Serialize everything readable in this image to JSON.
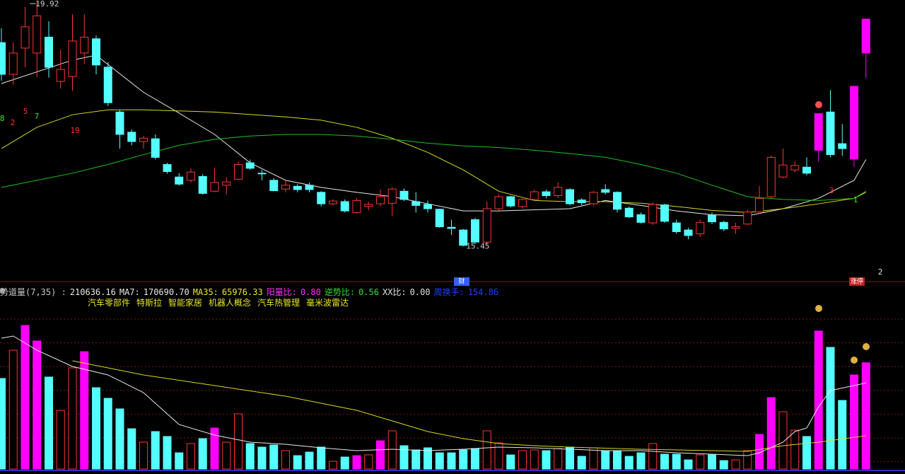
{
  "chart_data": [
    {
      "type": "candlestick",
      "ylim": [
        14.91,
        19.96
      ],
      "colors": {
        "up": "#ff3232",
        "down": "#54ffff",
        "highlight": "#ff00ff"
      },
      "highlight": [
        69,
        72,
        73
      ],
      "candles": [
        [
          19.18,
          19.44,
          18.48,
          18.6
        ],
        [
          18.6,
          19.18,
          18.41,
          18.99
        ],
        [
          19.08,
          19.83,
          18.73,
          19.47
        ],
        [
          18.99,
          19.92,
          18.54,
          19.67
        ],
        [
          19.28,
          19.57,
          18.54,
          18.73
        ],
        [
          18.47,
          19.05,
          18.34,
          18.69
        ],
        [
          18.56,
          19.7,
          18.3,
          19.21
        ],
        [
          18.99,
          19.7,
          18.79,
          19.28
        ],
        [
          19.25,
          19.31,
          18.6,
          18.77
        ],
        [
          18.73,
          18.82,
          18.02,
          18.08
        ],
        [
          17.91,
          17.95,
          17.24,
          17.5
        ],
        [
          17.54,
          17.59,
          17.3,
          17.37
        ],
        [
          17.37,
          17.47,
          17.24,
          17.43
        ],
        [
          17.42,
          17.5,
          17.04,
          17.08
        ],
        [
          16.95,
          16.98,
          16.78,
          16.82
        ],
        [
          16.72,
          16.79,
          16.56,
          16.59
        ],
        [
          16.66,
          16.88,
          16.62,
          16.81
        ],
        [
          16.73,
          16.77,
          16.4,
          16.42
        ],
        [
          16.46,
          16.89,
          16.44,
          16.62
        ],
        [
          16.57,
          16.72,
          16.4,
          16.63
        ],
        [
          16.68,
          17.0,
          16.66,
          16.95
        ],
        [
          16.98,
          17.04,
          16.85,
          16.88
        ],
        [
          16.79,
          16.85,
          16.66,
          16.78
        ],
        [
          16.66,
          16.7,
          16.46,
          16.47
        ],
        [
          16.5,
          16.66,
          16.44,
          16.57
        ],
        [
          16.55,
          16.59,
          16.44,
          16.49
        ],
        [
          16.57,
          16.62,
          16.44,
          16.49
        ],
        [
          16.44,
          16.46,
          16.18,
          16.23
        ],
        [
          16.23,
          16.31,
          16.2,
          16.28
        ],
        [
          16.27,
          16.31,
          16.07,
          16.1
        ],
        [
          16.07,
          16.33,
          16.05,
          16.29
        ],
        [
          16.18,
          16.27,
          16.11,
          16.22
        ],
        [
          16.23,
          16.49,
          16.18,
          16.36
        ],
        [
          16.24,
          16.53,
          16.01,
          16.5
        ],
        [
          16.46,
          16.51,
          16.28,
          16.31
        ],
        [
          16.27,
          16.44,
          16.07,
          16.2
        ],
        [
          16.22,
          16.29,
          16.07,
          16.14
        ],
        [
          16.13,
          16.14,
          15.79,
          15.81
        ],
        [
          15.8,
          15.94,
          15.66,
          15.78
        ],
        [
          15.75,
          15.77,
          15.45,
          15.47
        ],
        [
          15.94,
          15.97,
          15.49,
          15.53
        ],
        [
          15.53,
          16.27,
          15.49,
          16.14
        ],
        [
          16.14,
          16.4,
          16.1,
          16.36
        ],
        [
          16.36,
          16.38,
          16.16,
          16.19
        ],
        [
          16.18,
          16.33,
          16.14,
          16.31
        ],
        [
          16.31,
          16.49,
          16.28,
          16.45
        ],
        [
          16.45,
          16.49,
          16.33,
          16.38
        ],
        [
          16.38,
          16.62,
          16.33,
          16.53
        ],
        [
          16.49,
          16.51,
          16.2,
          16.23
        ],
        [
          16.3,
          16.33,
          16.2,
          16.25
        ],
        [
          16.23,
          16.46,
          16.2,
          16.44
        ],
        [
          16.49,
          16.59,
          16.4,
          16.44
        ],
        [
          16.44,
          16.46,
          16.07,
          16.13
        ],
        [
          16.15,
          16.18,
          15.97,
          15.99
        ],
        [
          16.03,
          16.07,
          15.87,
          15.89
        ],
        [
          15.88,
          16.25,
          15.84,
          16.22
        ],
        [
          16.21,
          16.23,
          15.88,
          15.91
        ],
        [
          15.88,
          15.94,
          15.68,
          15.72
        ],
        [
          15.75,
          15.79,
          15.58,
          15.65
        ],
        [
          15.68,
          15.94,
          15.62,
          15.89
        ],
        [
          16.02,
          16.07,
          15.86,
          15.9
        ],
        [
          15.89,
          15.92,
          15.73,
          15.77
        ],
        [
          15.78,
          15.88,
          15.68,
          15.81
        ],
        [
          15.86,
          16.12,
          15.84,
          16.08
        ],
        [
          16.08,
          16.56,
          16.04,
          16.33
        ],
        [
          16.36,
          17.11,
          16.33,
          17.08
        ],
        [
          16.72,
          17.24,
          16.7,
          16.94
        ],
        [
          16.85,
          17.01,
          16.81,
          16.93
        ],
        [
          16.9,
          17.08,
          16.75,
          16.79
        ],
        [
          17.21,
          17.88,
          17.0,
          17.88
        ],
        [
          17.91,
          18.31,
          17.08,
          17.13
        ],
        [
          17.33,
          17.69,
          17.11,
          17.24
        ],
        [
          17.05,
          18.38,
          16.91,
          18.38
        ],
        [
          18.99,
          19.61,
          18.53,
          19.61
        ]
      ],
      "high_label": "19.92",
      "low_label": "15.45",
      "series": [
        {
          "color": "#e8e8e8",
          "x": [
            0,
            6,
            8,
            12,
            15,
            18,
            21,
            24,
            27,
            30,
            33,
            36,
            39,
            42,
            48,
            51,
            54,
            57,
            60,
            63,
            66,
            69,
            72,
            73
          ],
          "values": [
            18.43,
            18.86,
            18.95,
            18.27,
            17.89,
            17.5,
            16.98,
            16.66,
            16.53,
            16.44,
            16.36,
            16.23,
            16.1,
            16.1,
            16.14,
            16.29,
            16.2,
            16.1,
            16.03,
            16.01,
            16.14,
            16.33,
            16.66,
            17.04
          ]
        },
        {
          "color": "#d8d820",
          "x": [
            0,
            3,
            6,
            9,
            12,
            18,
            24,
            27,
            30,
            33,
            36,
            39,
            42,
            45,
            48,
            51,
            54,
            57,
            60,
            63,
            66,
            69,
            72,
            73
          ],
          "values": [
            17.24,
            17.63,
            17.86,
            17.95,
            17.95,
            17.91,
            17.82,
            17.76,
            17.63,
            17.43,
            17.17,
            16.85,
            16.46,
            16.29,
            16.27,
            16.27,
            16.24,
            16.18,
            16.11,
            16.07,
            16.14,
            16.23,
            16.33,
            16.44
          ]
        },
        {
          "color": "#20c020",
          "x": [
            0,
            6,
            9,
            12,
            15,
            18,
            21,
            24,
            27,
            30,
            33,
            36,
            39,
            42,
            45,
            48,
            51,
            54,
            57,
            60,
            63,
            66,
            69,
            72,
            73
          ],
          "values": [
            16.53,
            16.79,
            16.95,
            17.13,
            17.3,
            17.41,
            17.47,
            17.5,
            17.5,
            17.47,
            17.41,
            17.34,
            17.29,
            17.26,
            17.21,
            17.15,
            17.08,
            16.95,
            16.79,
            16.57,
            16.36,
            16.31,
            16.29,
            16.33,
            16.46
          ]
        }
      ],
      "signals": [
        {
          "text": "8",
          "color": "#40e040"
        },
        {
          "text": "2",
          "color": "#ff3232"
        },
        {
          "text": "5",
          "color": "#ff3232"
        },
        {
          "text": "7",
          "color": "#40e040"
        },
        {
          "text": "19",
          "color": "#ff3232"
        },
        {
          "text": "3",
          "color": "#ff3232"
        },
        {
          "text": "1",
          "color": "#40e040"
        },
        {
          "text": "2",
          "color": "#e0e0e0"
        }
      ],
      "tags": [
        {
          "text": "财",
          "color": "#3060ff"
        },
        {
          "text": "涨停",
          "color": "#c02020"
        }
      ]
    },
    {
      "type": "bar",
      "ylim": [
        0,
        300000
      ],
      "highlight": [
        2,
        3,
        7,
        18,
        30,
        32,
        64,
        65,
        69,
        72,
        73
      ],
      "values": [
        179500,
        235500,
        284600,
        253800,
        182300,
        116400,
        200500,
        232700,
        161200,
        140200,
        119200,
        79900,
        53300,
        74300,
        64500,
        32200,
        50500,
        60300,
        81300,
        53300,
        109400,
        50500,
        43500,
        47700,
        36500,
        26600,
        33600,
        43500,
        15400,
        23800,
        26600,
        28000,
        56100,
        75700,
        46300,
        37900,
        42100,
        32200,
        32200,
        37900,
        40700,
        75700,
        51900,
        28000,
        36500,
        37900,
        36500,
        40700,
        43500,
        25200,
        42100,
        36500,
        36500,
        25200,
        32200,
        50500,
        29400,
        29400,
        18200,
        28000,
        28000,
        16800,
        18200,
        36500,
        68700,
        141600,
        113600,
        77100,
        64500,
        273400,
        241100,
        136000,
        186500,
        210636.16
      ],
      "series": [
        {
          "color": "#e8e8e8",
          "x": [
            0,
            1,
            3,
            6,
            9,
            12,
            15,
            18,
            21,
            24,
            27,
            30,
            33,
            36,
            39,
            42,
            45,
            48,
            51,
            54,
            57,
            60,
            63,
            64,
            66,
            67,
            68,
            69,
            70,
            72,
            73
          ],
          "values": [
            259400,
            263600,
            235500,
            203300,
            186500,
            151400,
            88300,
            67300,
            53300,
            49100,
            42100,
            36500,
            39300,
            36500,
            39300,
            43500,
            42100,
            39300,
            36500,
            36500,
            32200,
            29400,
            26600,
            32200,
            53300,
            74300,
            81300,
            123400,
            155600,
            165400,
            170690.7
          ]
        },
        {
          "color": "#d8d820",
          "x": [
            6,
            9,
            12,
            18,
            24,
            30,
            33,
            36,
            39,
            42,
            45,
            48,
            54,
            60,
            63,
            66,
            69,
            73
          ],
          "values": [
            214500,
            200500,
            186500,
            165400,
            144400,
            116400,
            95300,
            74300,
            60300,
            50500,
            46300,
            43500,
            39300,
            36500,
            35000,
            46300,
            53300,
            65976.33
          ]
        }
      ],
      "header": [
        {
          "text": "势道量(7,35) :",
          "color": "#c8c8c8"
        },
        {
          "text": "210636.16",
          "color": "#e8e8e8"
        },
        {
          "text": "MA7:",
          "color": "#e8e8e8"
        },
        {
          "text": "170690.70",
          "color": "#e8e8e8"
        },
        {
          "text": "MA35:",
          "color": "#e8e820"
        },
        {
          "text": "65976.33",
          "color": "#e8e820"
        },
        {
          "text": "阳量比:",
          "color": "#ff30ff"
        },
        {
          "text": "0.80",
          "color": "#ff30ff"
        },
        {
          "text": "逆势比:",
          "color": "#30e030"
        },
        {
          "text": "0.56",
          "color": "#30e030"
        },
        {
          "text": "XX比:",
          "color": "#e0e0e0"
        },
        {
          "text": "0.00",
          "color": "#e0e0e0"
        },
        {
          "text": "周换手:",
          "color": "#2040ff"
        },
        {
          "text": "154.86",
          "color": "#2040ff"
        }
      ],
      "concepts": [
        "汽车零部件",
        "特斯拉",
        "智能家居",
        "机器人概念",
        "汽车热管理",
        "毫米波雷达"
      ]
    }
  ]
}
